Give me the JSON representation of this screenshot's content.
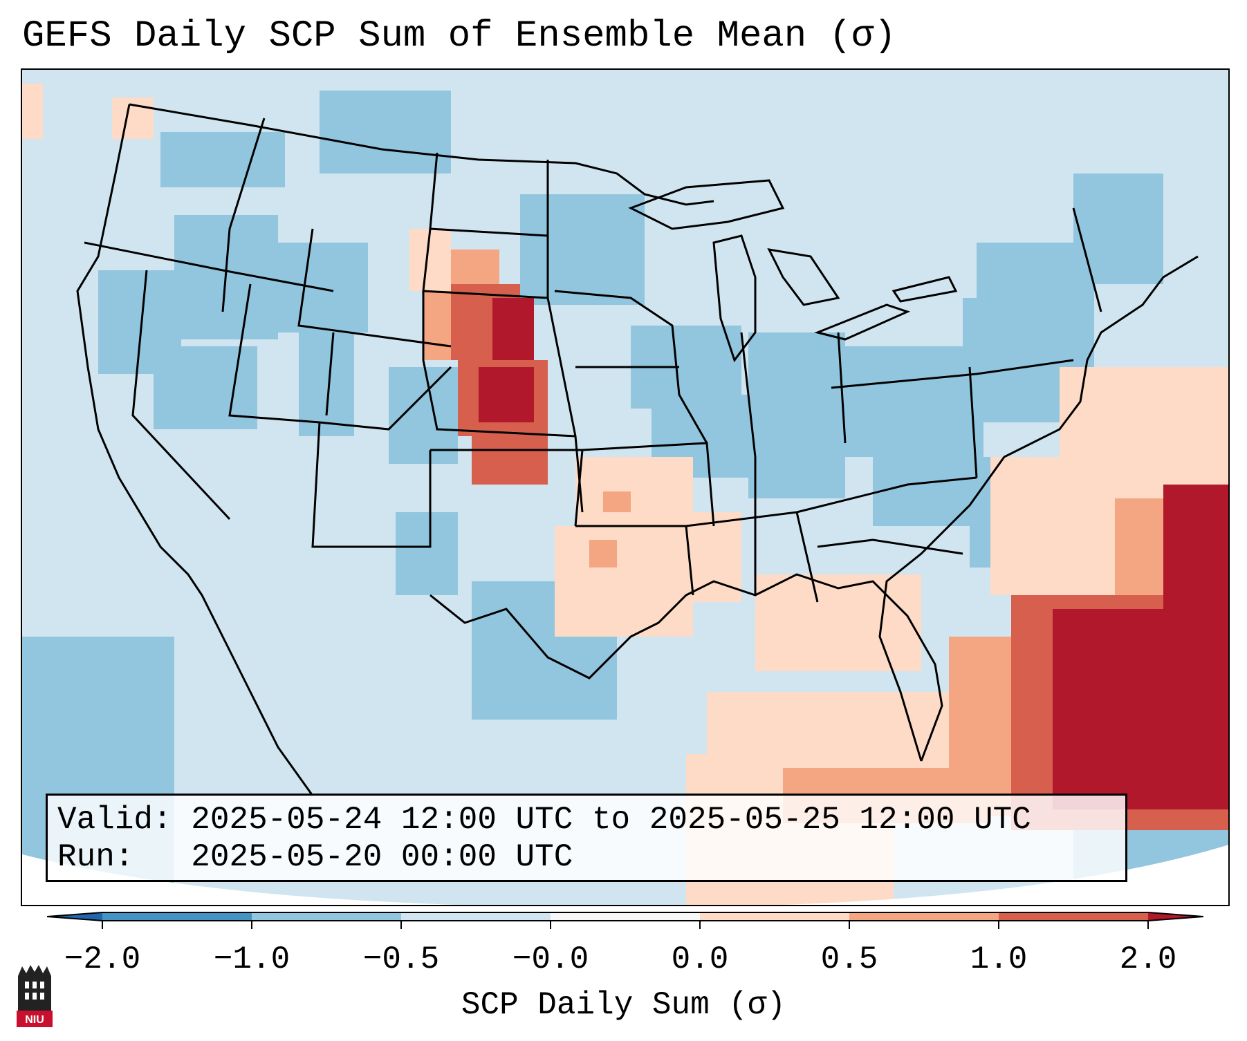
{
  "title": "GEFS Daily SCP Sum of Ensemble Mean (σ)",
  "info": {
    "valid_label": "Valid:",
    "valid_value": "2025-05-24 12:00 UTC to 2025-05-25 12:00 UTC",
    "run_label": "Run:",
    "run_value": "2025-05-20 00:00 UTC"
  },
  "colorbar": {
    "label": "SCP Daily Sum (σ)",
    "ticks": [
      "−2.0",
      "−1.0",
      "−0.5",
      "−0.0",
      "0.0",
      "0.5",
      "1.0",
      "2.0"
    ],
    "colors": [
      "#4393c3",
      "#92c5de",
      "#d1e5f0",
      "#f7f7f7",
      "#fddbc7",
      "#f4a582",
      "#d6604d",
      "#b2182b"
    ],
    "extend_low_color": "#2166ac",
    "extend_high_color": "#b2182b"
  },
  "map": {
    "background_color": "#d1e5f0",
    "border_color": "#000000"
  },
  "logo": {
    "text": "NIU",
    "color": "#c8102e"
  }
}
